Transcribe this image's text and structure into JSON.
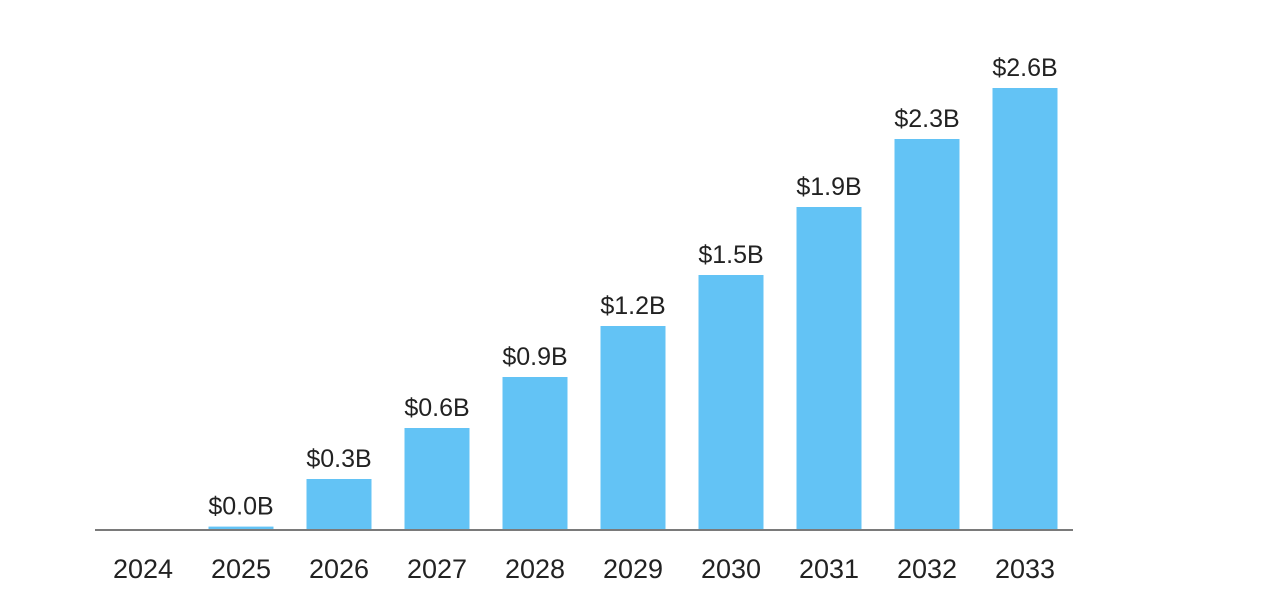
{
  "chart_data": {
    "type": "bar",
    "title": "",
    "xlabel": "",
    "ylabel": "",
    "categories": [
      "2024",
      "2025",
      "2026",
      "2027",
      "2028",
      "2029",
      "2030",
      "2031",
      "2032",
      "2033"
    ],
    "values": [
      0.0,
      0.02,
      0.3,
      0.6,
      0.9,
      1.2,
      1.5,
      1.9,
      2.3,
      2.6
    ],
    "data_labels": [
      "",
      "$0.0B",
      "$0.3B",
      "$0.6B",
      "$0.9B",
      "$1.2B",
      "$1.5B",
      "$1.9B",
      "$2.3B",
      "$2.6B"
    ],
    "ylim": [
      0,
      2.6
    ],
    "grid": false,
    "legend": "none",
    "bar_color": "#63c3f5"
  }
}
